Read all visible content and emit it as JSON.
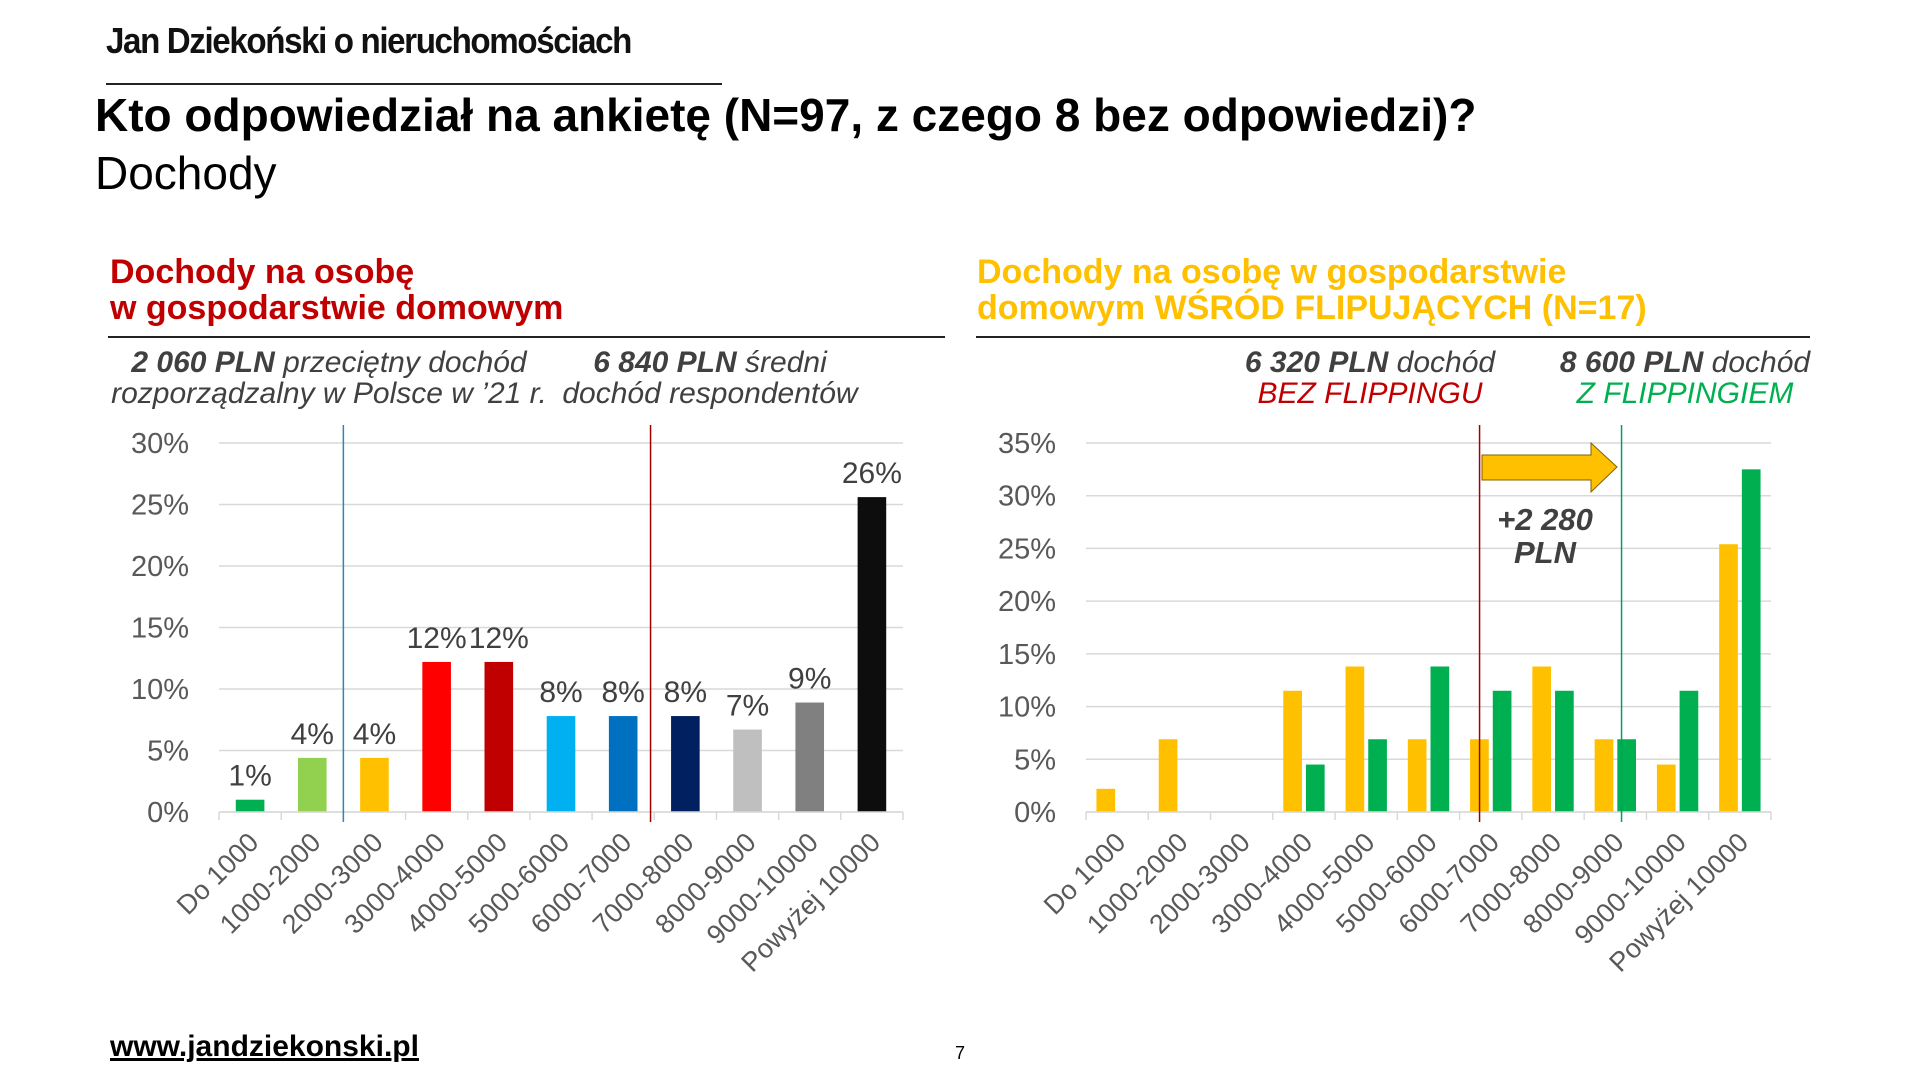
{
  "header": {
    "logo": "Jan Dziekoński o nieruchomościach",
    "title": "Kto odpowiedział na ankietę (N=97, z czego 8 bez odpowiedzi)?",
    "subtitle": "Dochody"
  },
  "left_panel": {
    "title_line1": "Dochody na osobę",
    "title_line2": "w gospodarstwie domowym",
    "note1": {
      "value": "2 060 PLN",
      "text1": " przeciętny dochód",
      "text2": "rozporządzalny w Polsce w ’21 r."
    },
    "note2": {
      "value": "6 840 PLN",
      "text1": " średni",
      "text2": "dochód respondentów"
    }
  },
  "right_panel": {
    "title_line1": "Dochody na osobę w gospodarstwie",
    "title_line2": "domowym WŚRÓD FLIPUJĄCYCH (N=17)",
    "note1": {
      "value": "6 320 PLN",
      "text1": " dochód",
      "text2": "BEZ FLIPPINGU"
    },
    "note2": {
      "value": "8 600 PLN",
      "text1": " dochód",
      "text2": "Z FLIPPINGIEM"
    },
    "annotation": {
      "line1": "+2 280",
      "line2": "PLN"
    }
  },
  "footer": {
    "url": "www.jandziekonski.pl",
    "page": "7"
  },
  "colors": {
    "red_title": "#c00000",
    "yellow_title": "#ffc000",
    "yellow": "#ffc000",
    "green": "#00b050",
    "marker_blue": "#2e86c1",
    "marker_red": "#a00000",
    "marker_green": "#00a060"
  },
  "chart_data": [
    {
      "type": "bar",
      "title": "Dochody na osobę w gospodarstwie domowym",
      "categories": [
        "Do 1000",
        "1000-2000",
        "2000-3000",
        "3000-4000",
        "4000-5000",
        "5000-6000",
        "6000-7000",
        "7000-8000",
        "8000-9000",
        "9000-10000",
        "Powyżej 10000"
      ],
      "values": [
        1.0,
        4.4,
        4.4,
        12.2,
        12.2,
        7.8,
        7.8,
        7.8,
        6.7,
        8.9,
        25.6
      ],
      "data_labels": [
        "1%",
        "4%",
        "4%",
        "12%",
        "12%",
        "8%",
        "8%",
        "8%",
        "7%",
        "9%",
        "26%"
      ],
      "bar_colors": [
        "#00b050",
        "#92d050",
        "#ffc000",
        "#ff0000",
        "#c00000",
        "#00b0f0",
        "#0070c0",
        "#002060",
        "#bfbfbf",
        "#808080",
        "#0d0d0d"
      ],
      "ylim": [
        0,
        30
      ],
      "yticks": [
        0,
        5,
        10,
        15,
        20,
        25,
        30
      ],
      "ytick_labels": [
        "0%",
        "5%",
        "10%",
        "15%",
        "20%",
        "25%",
        "30%"
      ],
      "xlabel": "",
      "ylabel": "",
      "grid": true,
      "reference_lines": [
        {
          "label": "2 060 PLN",
          "position_category_index": 2.0,
          "color": "#2e86c1"
        },
        {
          "label": "6 840 PLN",
          "position_category_index": 6.94,
          "color": "#a00000"
        }
      ]
    },
    {
      "type": "bar",
      "title": "Dochody na osobę w gospodarstwie domowym WŚRÓD FLIPUJĄCYCH (N=17)",
      "categories": [
        "Do 1000",
        "1000-2000",
        "2000-3000",
        "3000-4000",
        "4000-5000",
        "5000-6000",
        "6000-7000",
        "7000-8000",
        "8000-9000",
        "9000-10000",
        "Powyżej 10000"
      ],
      "series": [
        {
          "name": "Bez flippingu",
          "color": "#ffc000",
          "values": [
            2.2,
            6.9,
            0,
            11.5,
            13.8,
            6.9,
            6.9,
            13.8,
            6.9,
            4.5,
            25.4
          ]
        },
        {
          "name": "Z flippingiem",
          "color": "#00b050",
          "values": [
            0,
            0,
            0,
            4.5,
            6.9,
            13.8,
            11.5,
            11.5,
            6.9,
            11.5,
            32.5
          ]
        }
      ],
      "ylim": [
        0,
        35
      ],
      "yticks": [
        0,
        5,
        10,
        15,
        20,
        25,
        30,
        35
      ],
      "ytick_labels": [
        "0%",
        "5%",
        "10%",
        "15%",
        "20%",
        "25%",
        "30%",
        "35%"
      ],
      "xlabel": "",
      "ylabel": "",
      "grid": true,
      "reference_lines": [
        {
          "label": "6 320 PLN",
          "position_category_index": 6.32,
          "color": "#a00000"
        },
        {
          "label": "8 600 PLN",
          "position_category_index": 8.6,
          "color": "#00a060"
        }
      ]
    }
  ]
}
